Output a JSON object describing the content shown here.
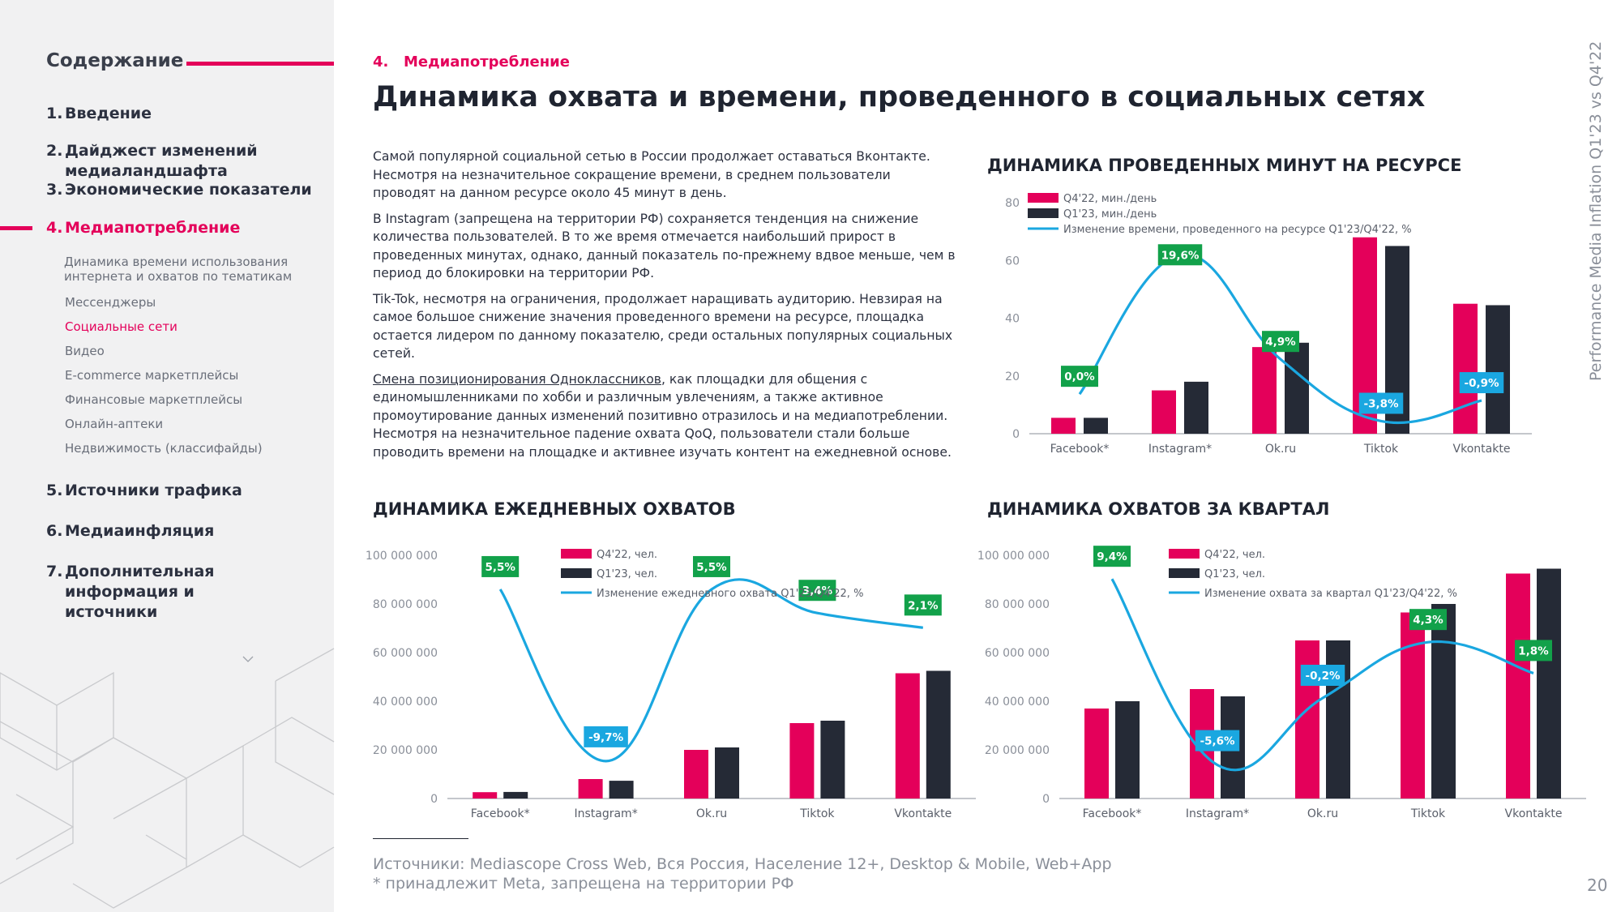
{
  "sidebar": {
    "title": "Содержание",
    "items": [
      {
        "num": "1.",
        "label": "Введение"
      },
      {
        "num": "2.",
        "label": "Дайджест изменений медиаландшафта"
      },
      {
        "num": "3.",
        "label": "Экономические показатели"
      },
      {
        "num": "4.",
        "label": "Медиапотребление"
      },
      {
        "num": "5.",
        "label": "Источники трафика"
      },
      {
        "num": "6.",
        "label": "Медиаинфляция"
      },
      {
        "num": "7.",
        "label": "Дополнительная информация и источники"
      }
    ],
    "subitems": [
      "Динамика времени использования интернета и охватов по тематикам",
      "Мессенджеры",
      "Социальные сети",
      "Видео",
      "E-commerce маркетплейсы",
      "Финансовые маркетплейсы",
      "Онлайн-аптеки",
      "Недвижимость (классифайды)"
    ]
  },
  "header": {
    "section_num": "4.",
    "section": "Медиапотребление",
    "title": "Динамика охвата и времени, проведенного в социальных сетях"
  },
  "body": {
    "p1": "Самой популярной социальной сетью в России продолжает оставаться Вконтакте. Несмотря на незначительное сокращение времени, в среднем пользователи проводят на данном ресурсе около 45 минут в день.",
    "p2": "В Instagram (запрещена на территории РФ) сохраняется тенденция на снижение количества пользователей. В то же время отмечается наибольший прирост в проведенных минутах, однако, данный показатель по-прежнему вдвое меньше, чем в период до блокировки на территории РФ.",
    "p3": "Tik-Tok, несмотря на ограничения, продолжает наращивать аудиторию. Невзирая на самое большое снижение значения проведенного времени на ресурсе, площадка остается лидером по данному показателю, среди остальных популярных социальных сетей.",
    "p4_link": "Смена позиционирования Одноклассников",
    "p4_rest": ", как площадки для общения с единомышленниками по хобби и различным увлечениям, а также активное промоутирование данных изменений позитивно отразилось и на медиапотреблении. Несмотря на незначительное падение охвата QoQ, пользователи стали больше проводить времени на площадке и активнее изучать контент на ежедневной основе."
  },
  "side_label": "Performance Media Inflation Q1'23 vs Q4'22",
  "page_number": "20",
  "sources": {
    "line1": "Источники: Mediascope Cross Web, Вся Россия, Население 12+, Desktop & Mobile, Web+App",
    "line2": "* принадлежит Meta, запрещена на территории РФ"
  },
  "colors": {
    "accent": "#e4005a",
    "dark": "#252a36",
    "line": "#1aa7e0",
    "green": "#12a14a",
    "blue": "#1aa7e0"
  },
  "chart_data": [
    {
      "id": "minutes",
      "type": "bar",
      "title": "ДИНАМИКА ПРОВЕДЕННЫХ МИНУТ НА РЕСУРСЕ",
      "categories": [
        "Facebook*",
        "Instagram*",
        "Ok.ru",
        "Tiktok",
        "Vkontakte"
      ],
      "ylim": [
        0,
        80
      ],
      "yticks": [
        0,
        20,
        40,
        60,
        80
      ],
      "ytick_labels": [
        "0",
        "20",
        "40",
        "60",
        "80"
      ],
      "series": [
        {
          "name": "Q4'22, мин./день",
          "values": [
            5.5,
            15,
            30,
            68,
            45
          ]
        },
        {
          "name": "Q1'23, мин./день",
          "values": [
            5.5,
            18,
            31.5,
            65,
            44.5
          ]
        }
      ],
      "change": {
        "name": "Изменение времени, проведенного на ресурсе Q1'23/Q4'22, %",
        "labels": [
          "0,0%",
          "19,6%",
          "4,9%",
          "-3,8%",
          "-0,9%"
        ],
        "values": [
          0.0,
          19.6,
          4.9,
          -3.8,
          -0.9
        ],
        "badge_colors": [
          "green",
          "green",
          "green",
          "blue",
          "blue"
        ]
      }
    },
    {
      "id": "daily",
      "type": "bar",
      "title": "ДИНАМИКА ЕЖЕДНЕВНЫХ ОХВАТОВ",
      "categories": [
        "Facebook*",
        "Instagram*",
        "Ok.ru",
        "Tiktok",
        "Vkontakte"
      ],
      "ylim": [
        0,
        100000000
      ],
      "yticks": [
        0,
        20000000,
        40000000,
        60000000,
        80000000,
        100000000
      ],
      "ytick_labels": [
        "0",
        "20 000 000",
        "40 000 000",
        "60 000 000",
        "80 000 000",
        "100 000 000"
      ],
      "series": [
        {
          "name": "Q4'22, чел.",
          "values": [
            2600000,
            8000000,
            20000000,
            31000000,
            51500000
          ]
        },
        {
          "name": "Q1'23, чел.",
          "values": [
            2700000,
            7300000,
            21000000,
            32000000,
            52500000
          ]
        }
      ],
      "change": {
        "name": "Изменение ежедневного охвата Q1'23/Q4'22, %",
        "labels": [
          "5,5%",
          "-9,7%",
          "5,5%",
          "3,4%",
          "2,1%"
        ],
        "values": [
          5.5,
          -9.7,
          5.5,
          3.4,
          2.1
        ],
        "badge_colors": [
          "green",
          "blue",
          "green",
          "green",
          "green"
        ]
      }
    },
    {
      "id": "quarter",
      "type": "bar",
      "title": "ДИНАМИКА ОХВАТОВ ЗА КВАРТАЛ",
      "categories": [
        "Facebook*",
        "Instagram*",
        "Ok.ru",
        "Tiktok",
        "Vkontakte"
      ],
      "ylim": [
        0,
        100000000
      ],
      "yticks": [
        0,
        20000000,
        40000000,
        60000000,
        80000000,
        100000000
      ],
      "ytick_labels": [
        "0",
        "20 000 000",
        "40 000 000",
        "60 000 000",
        "80 000 000",
        "100 000 000"
      ],
      "series": [
        {
          "name": "Q4'22, чел.",
          "values": [
            37000000,
            45000000,
            65000000,
            76500000,
            92500000
          ]
        },
        {
          "name": "Q1'23, чел.",
          "values": [
            40000000,
            42000000,
            65000000,
            80000000,
            94500000
          ]
        }
      ],
      "change": {
        "name": "Изменение охвата за квартал Q1'23/Q4'22, %",
        "labels": [
          "9,4%",
          "-5,6%",
          "-0,2%",
          "4,3%",
          "1,8%"
        ],
        "values": [
          9.4,
          -5.6,
          -0.2,
          4.3,
          1.8
        ],
        "badge_colors": [
          "green",
          "blue",
          "blue",
          "green",
          "green"
        ]
      }
    }
  ]
}
